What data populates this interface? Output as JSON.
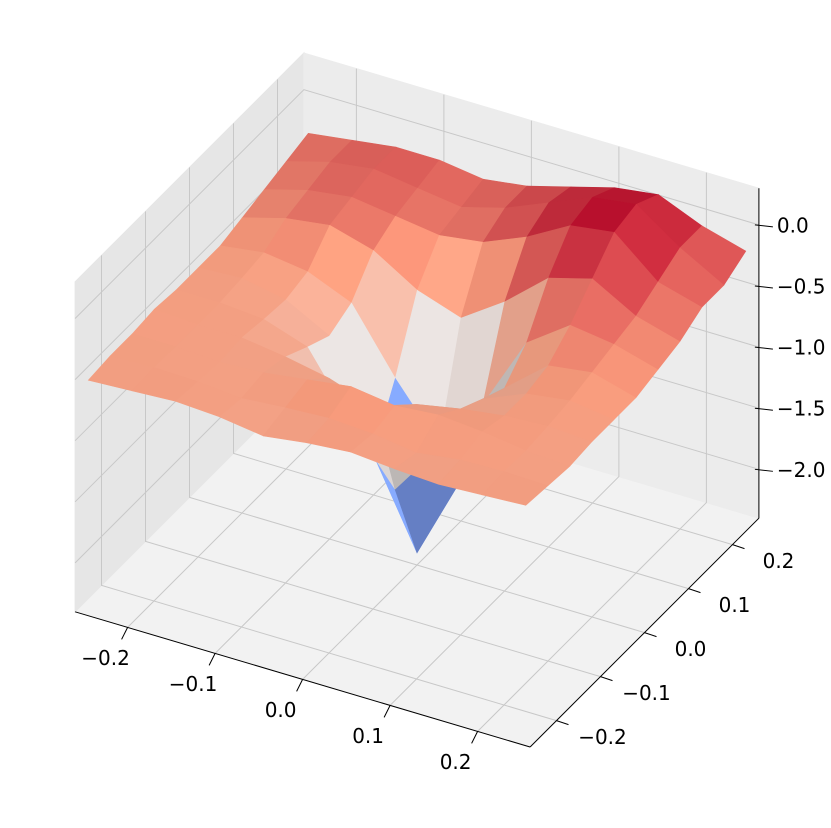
{
  "chart_data": {
    "type": "surface",
    "x": [
      -0.25,
      -0.2,
      -0.15,
      -0.1,
      -0.05,
      0,
      0.05,
      0.1,
      0.15,
      0.2,
      0.25
    ],
    "y": [
      -0.25,
      -0.2,
      -0.15,
      -0.1,
      -0.05,
      0,
      0.05,
      0.1,
      0.15,
      0.2,
      0.25
    ],
    "z": [
      [
        -0.52,
        -0.5,
        -0.48,
        -0.5,
        -0.55,
        -0.5,
        -0.47,
        -0.5,
        -0.52,
        -0.5,
        -0.48
      ],
      [
        -0.5,
        -0.49,
        -0.5,
        -0.53,
        -0.5,
        -0.48,
        -0.5,
        -0.55,
        -0.5,
        -0.49,
        -0.5
      ],
      [
        -0.5,
        -0.5,
        -0.52,
        -0.5,
        -0.45,
        -0.4,
        -0.45,
        -0.42,
        -0.45,
        -0.5,
        -0.52
      ],
      [
        -0.48,
        -0.5,
        -0.5,
        -0.55,
        -0.62,
        -0.74,
        -0.62,
        -0.55,
        -0.5,
        -0.48,
        -0.5
      ],
      [
        -0.5,
        -0.5,
        -0.53,
        -0.65,
        -1.16,
        -1.6,
        -1.16,
        -0.65,
        -0.5,
        -0.45,
        -0.5
      ],
      [
        -0.5,
        -0.48,
        -0.55,
        -0.74,
        -1.6,
        -2.3,
        -1.6,
        -0.74,
        -0.45,
        -0.4,
        -0.5
      ],
      [
        -0.5,
        -0.45,
        -0.5,
        -0.65,
        -1.16,
        -1.6,
        -1.16,
        -0.55,
        -0.3,
        -0.35,
        -0.45
      ],
      [
        -0.45,
        -0.35,
        -0.3,
        -0.4,
        -0.62,
        -0.74,
        -0.5,
        -0.2,
        -0.1,
        -0.3,
        -0.4
      ],
      [
        -0.4,
        -0.3,
        -0.25,
        -0.3,
        -0.35,
        -0.3,
        -0.15,
        0.05,
        0.1,
        -0.2,
        -0.3
      ],
      [
        -0.35,
        -0.25,
        -0.2,
        -0.25,
        -0.3,
        -0.2,
        -0.05,
        0.1,
        0.15,
        -0.1,
        -0.3
      ],
      [
        -0.3,
        -0.25,
        -0.2,
        -0.2,
        -0.25,
        -0.2,
        -0.1,
        0.0,
        0.05,
        -0.1,
        -0.2
      ]
    ],
    "xlim": [
      -0.26,
      0.26
    ],
    "ylim": [
      -0.26,
      0.26
    ],
    "zlim": [
      -2.4,
      0.3
    ],
    "xticks": [
      {
        "value": -0.2,
        "label": "−0.2"
      },
      {
        "value": -0.1,
        "label": "−0.1"
      },
      {
        "value": 0,
        "label": "0.0"
      },
      {
        "value": 0.1,
        "label": "0.1"
      },
      {
        "value": 0.2,
        "label": "0.2"
      }
    ],
    "yticks": [
      {
        "value": -0.2,
        "label": "−0.2"
      },
      {
        "value": -0.1,
        "label": "−0.1"
      },
      {
        "value": 0,
        "label": "0.0"
      },
      {
        "value": 0.1,
        "label": "0.1"
      },
      {
        "value": 0.2,
        "label": "0.2"
      }
    ],
    "zticks": [
      {
        "value": 0,
        "label": "0.0"
      },
      {
        "value": -0.5,
        "label": "−0.5"
      },
      {
        "value": -1,
        "label": "−1.0"
      },
      {
        "value": -1.5,
        "label": "−1.5"
      },
      {
        "value": -2,
        "label": "−2.0"
      }
    ],
    "colormap": "coolwarm",
    "grid": true
  }
}
